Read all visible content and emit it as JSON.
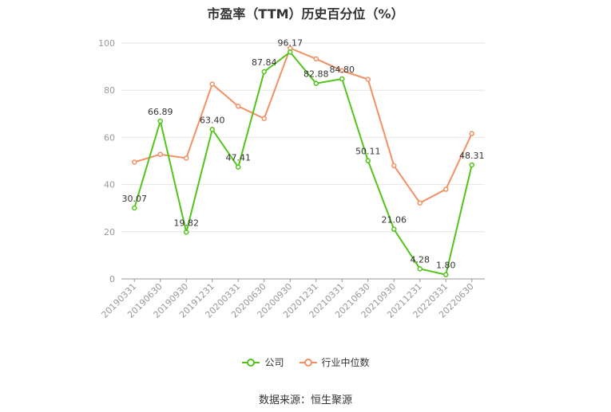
{
  "chart_data": {
    "type": "line",
    "title": "市盈率（TTM）历史百分位（%）",
    "categories": [
      "20190331",
      "20190630",
      "20190930",
      "20191231",
      "20200331",
      "20200630",
      "20200930",
      "20201231",
      "20210331",
      "20210630",
      "20210930",
      "20211231",
      "20220331",
      "20220630"
    ],
    "series": [
      {
        "name": "公司",
        "color": "#52c41a",
        "show_labels": true,
        "values": [
          30.07,
          66.89,
          19.82,
          63.4,
          47.41,
          87.84,
          96.17,
          82.88,
          84.8,
          50.11,
          21.06,
          4.28,
          1.8,
          48.31
        ]
      },
      {
        "name": "行业中位数",
        "color": "#f39063",
        "show_labels": false,
        "values": [
          49.5,
          52.8,
          51.2,
          82.6,
          73.2,
          68.0,
          97.8,
          93.3,
          88.3,
          84.6,
          48.0,
          32.2,
          38.0,
          61.6
        ]
      }
    ],
    "yticks": [
      0,
      20,
      40,
      60,
      80,
      100
    ],
    "ylim": [
      0,
      100
    ],
    "grid": true,
    "legend_position": "bottom"
  },
  "source": "数据来源：恒生聚源"
}
